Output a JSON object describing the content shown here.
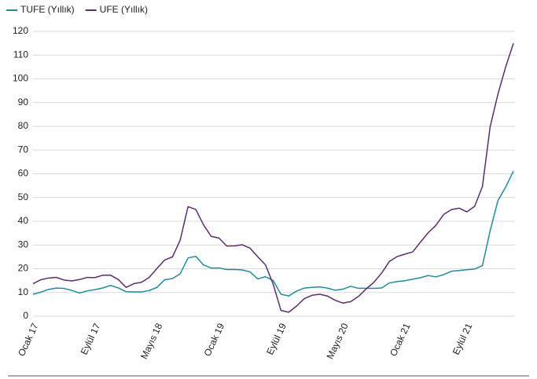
{
  "chart_data": {
    "type": "line",
    "categories": [
      "Ocak 17",
      null,
      null,
      null,
      null,
      null,
      null,
      null,
      "Eylül 17",
      null,
      null,
      null,
      null,
      null,
      null,
      null,
      "Mayıs 18",
      null,
      null,
      null,
      null,
      null,
      null,
      null,
      "Ocak 19",
      null,
      null,
      null,
      null,
      null,
      null,
      null,
      "Eylül 19",
      null,
      null,
      null,
      null,
      null,
      null,
      null,
      "Mayıs 20",
      null,
      null,
      null,
      null,
      null,
      null,
      null,
      "Ocak 21",
      null,
      null,
      null,
      null,
      null,
      null,
      null,
      "Eylül 21",
      null,
      null,
      null,
      null,
      null,
      null
    ],
    "series": [
      {
        "name": "TUFE (Yıllık)",
        "color": "#1f8c9e",
        "values": [
          9.22,
          10.13,
          11.29,
          11.87,
          11.72,
          10.9,
          9.79,
          10.68,
          11.2,
          11.9,
          12.98,
          11.92,
          10.35,
          10.26,
          10.23,
          10.85,
          12.15,
          15.39,
          15.85,
          17.9,
          24.52,
          25.24,
          21.62,
          20.3,
          20.35,
          19.67,
          19.71,
          19.5,
          18.71,
          15.72,
          16.65,
          15.01,
          9.26,
          8.55,
          10.56,
          11.84,
          12.15,
          12.37,
          11.86,
          10.94,
          11.39,
          12.62,
          11.76,
          11.77,
          11.75,
          11.89,
          14.03,
          14.6,
          14.97,
          15.61,
          16.19,
          17.14,
          16.59,
          17.53,
          18.95,
          19.25,
          19.58,
          19.89,
          21.31,
          36.08,
          48.69,
          54.44,
          61.14
        ]
      },
      {
        "name": "UFE (Yıllık)",
        "color": "#5c2d6e",
        "values": [
          13.69,
          15.36,
          16.09,
          16.37,
          15.26,
          14.87,
          15.45,
          16.34,
          16.28,
          17.28,
          17.3,
          15.47,
          12.14,
          13.71,
          14.28,
          16.37,
          20.16,
          23.71,
          25.0,
          32.13,
          46.15,
          45.01,
          38.54,
          33.64,
          32.93,
          29.58,
          29.64,
          30.12,
          28.71,
          25.04,
          21.66,
          13.45,
          2.45,
          1.7,
          4.26,
          7.36,
          8.84,
          9.26,
          8.5,
          6.71,
          5.53,
          6.17,
          8.33,
          11.53,
          14.33,
          18.2,
          23.11,
          25.15,
          26.16,
          27.09,
          31.2,
          35.17,
          38.33,
          42.89,
          44.92,
          45.52,
          43.96,
          46.31,
          54.62,
          79.89,
          93.53,
          105.01,
          114.97
        ]
      }
    ],
    "ylim": [
      0,
      120
    ],
    "yticks": [
      0,
      10,
      20,
      30,
      40,
      50,
      60,
      70,
      80,
      90,
      100,
      110,
      120
    ],
    "grid": true,
    "legend": "top-left"
  }
}
